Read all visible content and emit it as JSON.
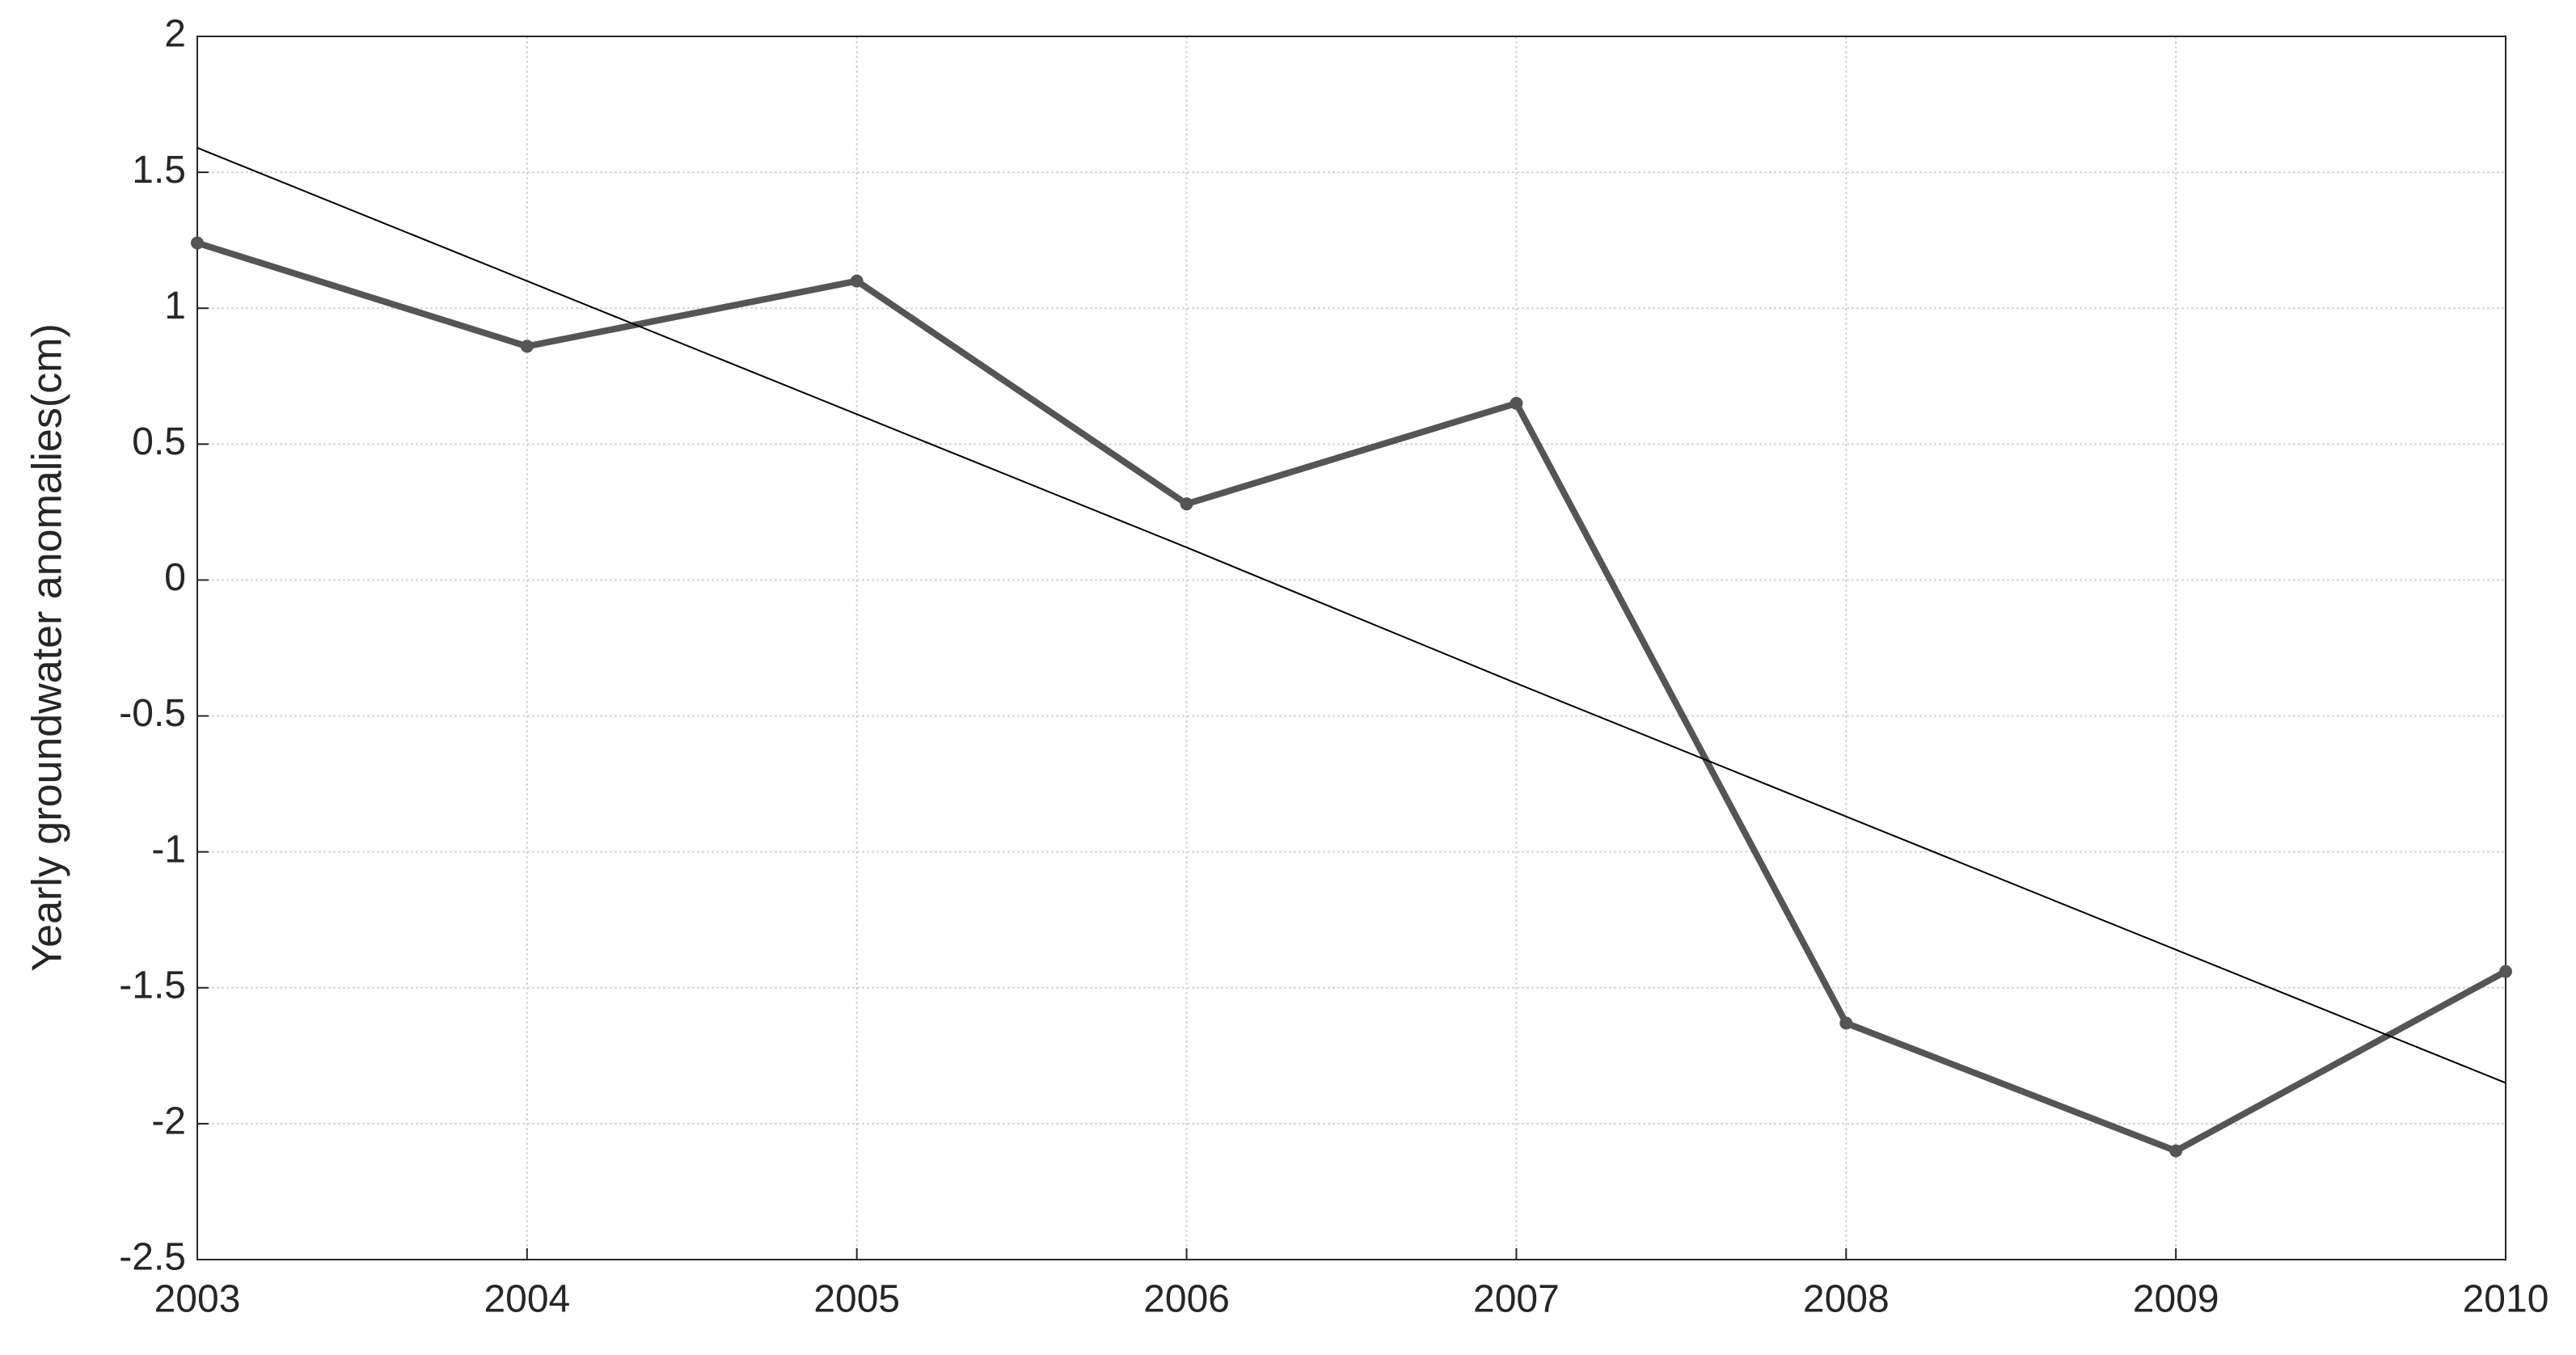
{
  "chart_data": {
    "type": "line",
    "ylabel": "Yearly groundwater anomalies(cm)",
    "x": [
      2003,
      2004,
      2005,
      2006,
      2007,
      2008,
      2009,
      2010
    ],
    "series": [
      {
        "color": "#555555",
        "values": [
          1.24,
          0.86,
          1.1,
          0.28,
          0.65,
          -1.63,
          -2.1,
          -1.44
        ],
        "markers": true
      },
      {
        "color": "#000000",
        "values": [
          1.59,
          1.1,
          0.61,
          0.12,
          -0.38,
          -0.87,
          -1.36,
          -1.85
        ],
        "markers": false
      }
    ],
    "xlim": [
      2003,
      2010
    ],
    "xticks": [
      2003,
      2004,
      2005,
      2006,
      2007,
      2008,
      2009,
      2010
    ],
    "ylim": [
      -2.5,
      2
    ],
    "yticks": [
      -2.5,
      -2,
      -1.5,
      -1,
      -0.5,
      0,
      0.5,
      1,
      1.5,
      2
    ],
    "grid": true
  }
}
